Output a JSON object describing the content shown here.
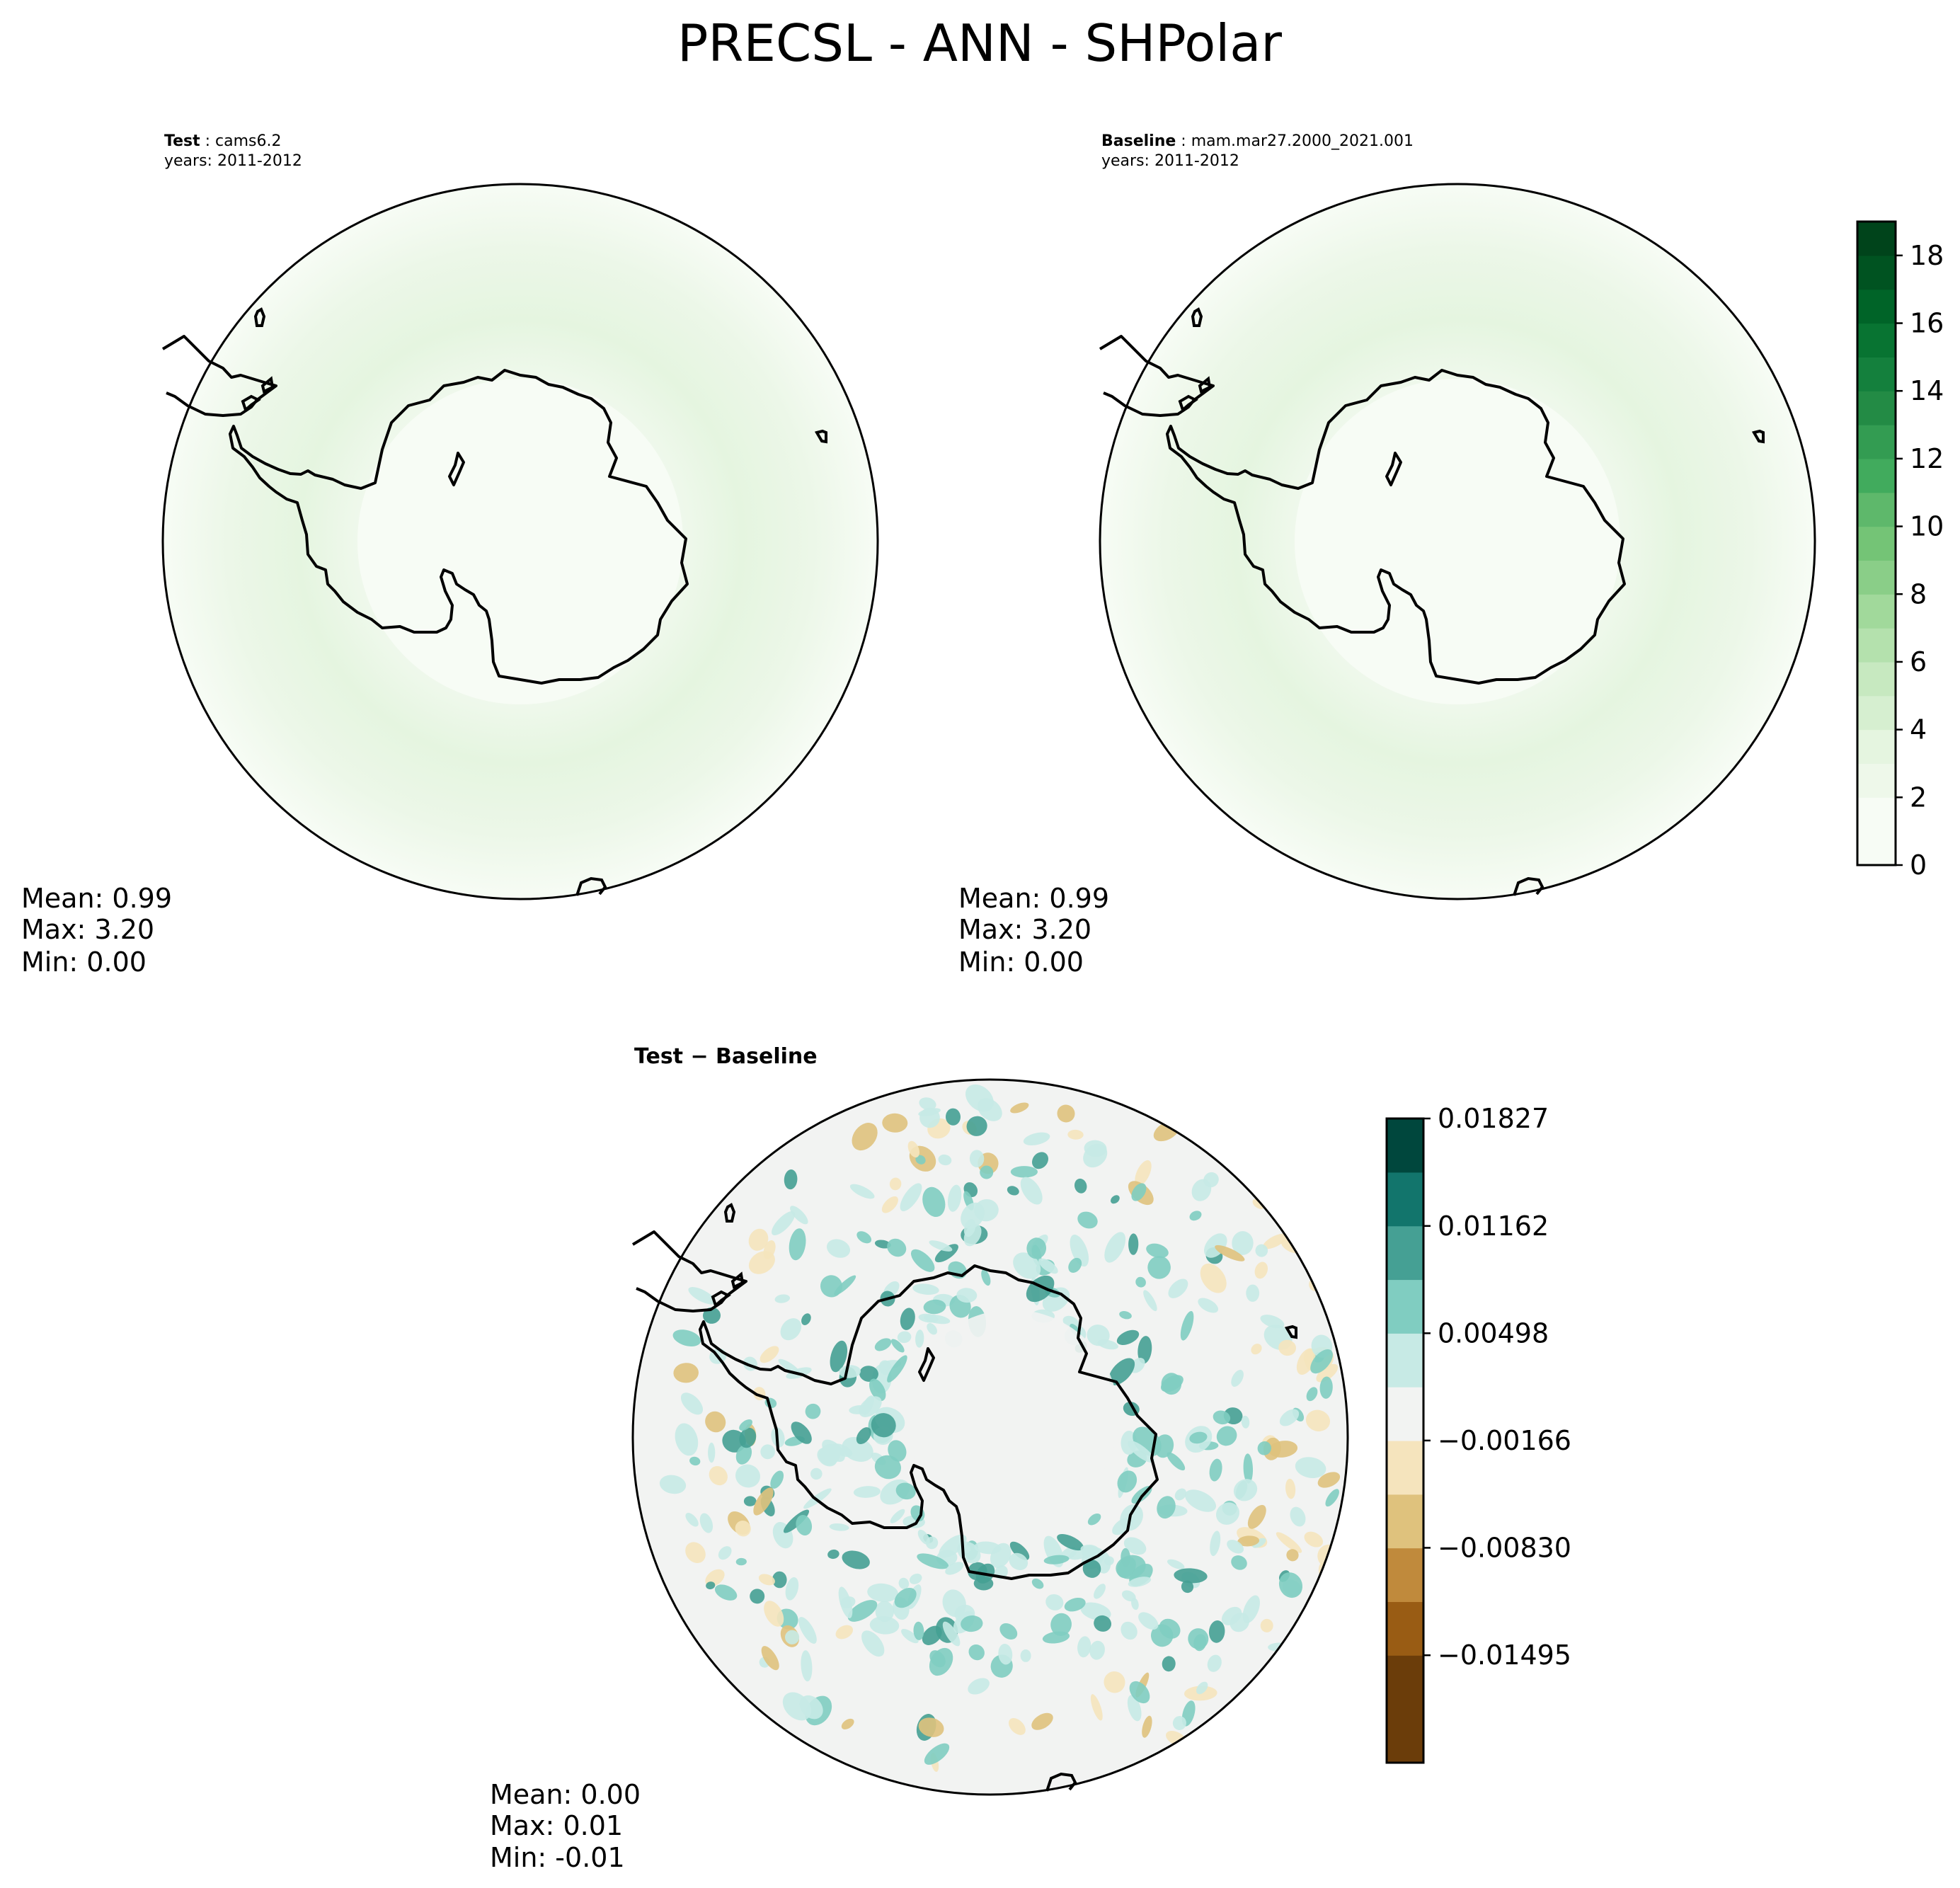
{
  "figure_title": "PRECSL - ANN - SHPolar",
  "panels": {
    "test": {
      "label": "Test",
      "case": "cams6.2",
      "years": "years: 2011-2012",
      "stats": {
        "mean": "Mean:  0.99",
        "max": "Max:  3.20",
        "min": "Min:  0.00"
      }
    },
    "baseline": {
      "label": "Baseline",
      "case": "mam.mar27.2000_2021.001",
      "years": "years: 2011-2012",
      "stats": {
        "mean": "Mean:  0.99",
        "max": "Max:  3.20",
        "min": "Min:  0.00"
      }
    },
    "difference": {
      "label": "Test − Baseline",
      "stats": {
        "mean": "Mean:  0.00",
        "max": "Max:  0.01",
        "min": "Min: -0.01"
      }
    }
  },
  "colors": {
    "greens": [
      "#f7fcf5",
      "#eef8ea",
      "#e5f5e0",
      "#d6efd0",
      "#c7e9c0",
      "#b4e1ad",
      "#a1d99b",
      "#8ace88",
      "#74c476",
      "#5eb86b",
      "#41ab5d",
      "#339c52",
      "#238b45",
      "#14803d",
      "#087432",
      "#006428",
      "#005321",
      "#00441b"
    ],
    "diff": [
      "#6b3d0a",
      "#995c14",
      "#c08a3c",
      "#dfc27d",
      "#f5e4bd",
      "#f2f3f2",
      "#c7eae5",
      "#80cdc1",
      "#45a094",
      "#12756c",
      "#00473d"
    ]
  },
  "chart_data": [
    {
      "type": "heatmap",
      "name": "test",
      "projection": "South Polar Stereographic",
      "colorbar": {
        "min": 0,
        "max": 19,
        "levels": 19,
        "ticks": [
          0,
          2,
          4,
          6,
          8,
          10,
          12,
          14,
          16,
          18
        ]
      },
      "mean": 0.99,
      "max": 3.2,
      "min": 0.0
    },
    {
      "type": "heatmap",
      "name": "baseline",
      "projection": "South Polar Stereographic",
      "colorbar": {
        "min": 0,
        "max": 19,
        "levels": 19,
        "ticks": [
          0,
          2,
          4,
          6,
          8,
          10,
          12,
          14,
          16,
          18
        ]
      },
      "mean": 0.99,
      "max": 3.2,
      "min": 0.0
    },
    {
      "type": "heatmap",
      "name": "difference",
      "projection": "South Polar Stereographic",
      "colorbar": {
        "min": -0.0216,
        "max": 0.01827,
        "ticks": [
          -0.01495,
          -0.0083,
          -0.00166,
          0.00498,
          0.01162,
          0.01827
        ],
        "tick_labels": [
          "−0.01495",
          "−0.00830",
          "−0.00166",
          "0.00498",
          "0.01162",
          "0.01827"
        ]
      },
      "mean": 0.0,
      "max": 0.01,
      "min": -0.01
    }
  ]
}
